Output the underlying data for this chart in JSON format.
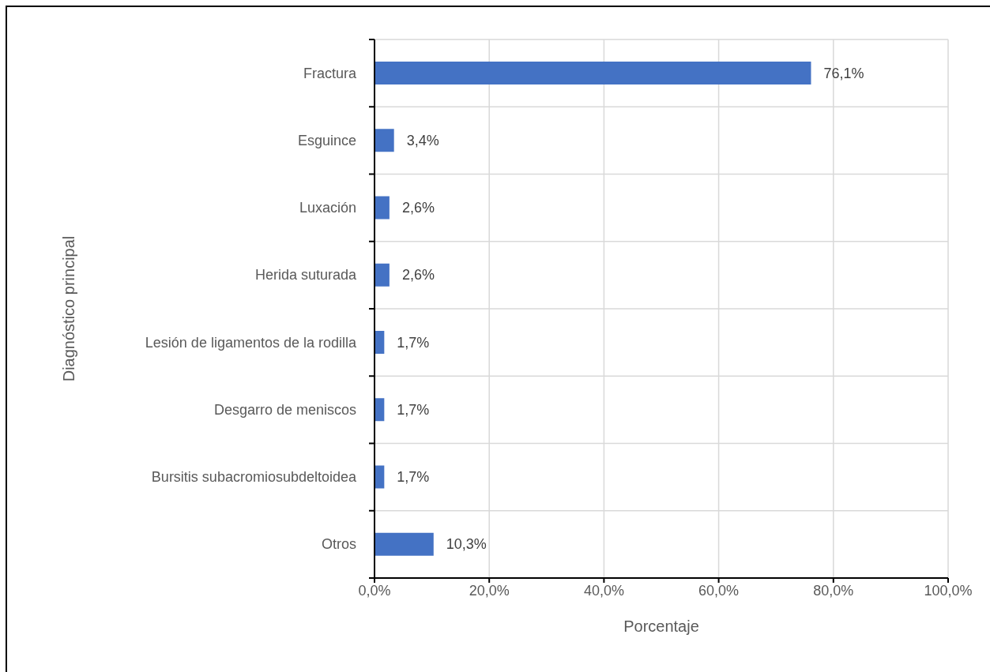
{
  "chart_data": {
    "type": "bar",
    "orientation": "horizontal",
    "xlabel": "Porcentaje",
    "ylabel": "Diagnóstico principal",
    "categories": [
      "Fractura",
      "Esguince",
      "Luxación",
      "Herida suturada",
      "Lesión de ligamentos de la rodilla",
      "Desgarro de meniscos",
      "Bursitis subacromiosubdeltoidea",
      "Otros"
    ],
    "values": [
      76.1,
      3.4,
      2.6,
      2.6,
      1.7,
      1.7,
      1.7,
      10.3
    ],
    "value_labels": [
      "76,1%",
      "3,4%",
      "2,6%",
      "2,6%",
      "1,7%",
      "1,7%",
      "1,7%",
      "10,3%"
    ],
    "color": "#4472c4",
    "xlim": [
      0,
      100
    ],
    "xticks": [
      {
        "value": 0,
        "label": "0,0%"
      },
      {
        "value": 20,
        "label": "20,0%"
      },
      {
        "value": 40,
        "label": "40,0%"
      },
      {
        "value": 60,
        "label": "60,0%"
      },
      {
        "value": 80,
        "label": "80,0%"
      },
      {
        "value": 100,
        "label": "100,0%"
      }
    ],
    "grid": true
  }
}
